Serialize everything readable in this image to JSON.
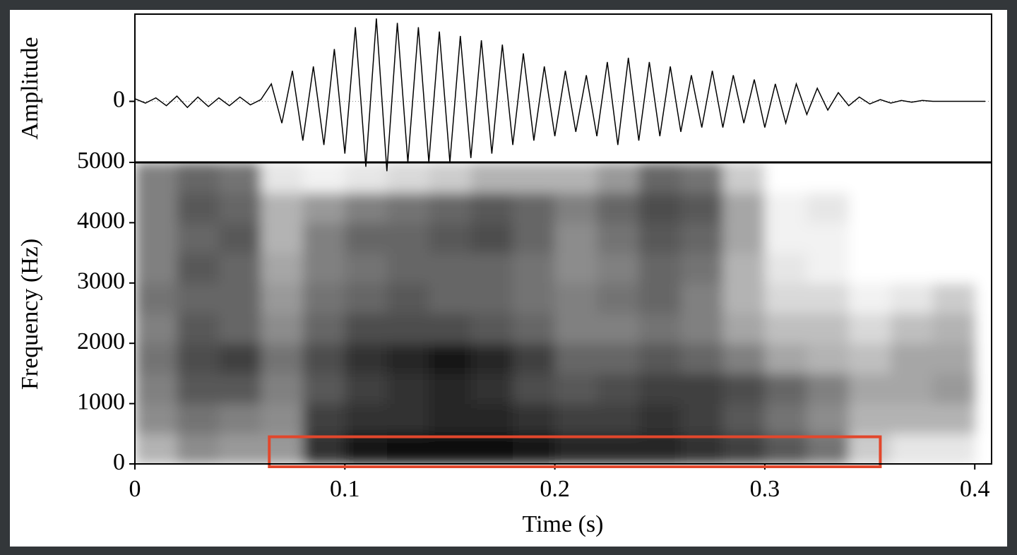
{
  "chart_data": [
    {
      "type": "line",
      "ylabel": "Amplitude",
      "xlim": [
        0,
        0.408
      ],
      "ylim": [
        -0.7,
        1.0
      ],
      "yticks": [
        0
      ],
      "grid": true,
      "color": "#000000",
      "x": [
        0,
        0.005,
        0.01,
        0.015,
        0.02,
        0.025,
        0.03,
        0.035,
        0.04,
        0.045,
        0.05,
        0.055,
        0.06,
        0.065,
        0.07,
        0.075,
        0.08,
        0.085,
        0.09,
        0.095,
        0.1,
        0.105,
        0.11,
        0.115,
        0.12,
        0.125,
        0.13,
        0.135,
        0.14,
        0.145,
        0.15,
        0.155,
        0.16,
        0.165,
        0.17,
        0.175,
        0.18,
        0.185,
        0.19,
        0.195,
        0.2,
        0.205,
        0.21,
        0.215,
        0.22,
        0.225,
        0.23,
        0.235,
        0.24,
        0.245,
        0.25,
        0.255,
        0.26,
        0.265,
        0.27,
        0.275,
        0.28,
        0.285,
        0.29,
        0.295,
        0.3,
        0.305,
        0.31,
        0.315,
        0.32,
        0.325,
        0.33,
        0.335,
        0.34,
        0.345,
        0.35,
        0.355,
        0.36,
        0.365,
        0.37,
        0.375,
        0.38,
        0.385,
        0.39,
        0.395,
        0.4,
        0.405
      ],
      "values": [
        0.03,
        -0.02,
        0.04,
        -0.05,
        0.06,
        -0.07,
        0.05,
        -0.06,
        0.04,
        -0.05,
        0.05,
        -0.04,
        0.02,
        0.2,
        -0.25,
        0.35,
        -0.45,
        0.4,
        -0.5,
        0.6,
        -0.6,
        0.85,
        -0.75,
        0.95,
        -0.8,
        0.9,
        -0.7,
        0.85,
        -0.7,
        0.8,
        -0.7,
        0.75,
        -0.65,
        0.7,
        -0.6,
        0.65,
        -0.5,
        0.55,
        -0.45,
        0.4,
        -0.4,
        0.35,
        -0.35,
        0.3,
        -0.4,
        0.45,
        -0.5,
        0.5,
        -0.45,
        0.45,
        -0.4,
        0.4,
        -0.35,
        0.3,
        -0.3,
        0.35,
        -0.3,
        0.3,
        -0.25,
        0.25,
        -0.3,
        0.2,
        -0.25,
        0.2,
        -0.15,
        0.15,
        -0.1,
        0.1,
        -0.05,
        0.05,
        -0.03,
        0.02,
        -0.02,
        0.01,
        -0.01,
        0.01,
        0,
        0,
        0,
        0,
        0,
        0
      ]
    },
    {
      "type": "heatmap",
      "xlabel": "Time (s)",
      "ylabel": "Frequency (Hz)",
      "xlim": [
        0,
        0.408
      ],
      "ylim": [
        0,
        5000
      ],
      "xticks": [
        0,
        0.1,
        0.2,
        0.3,
        0.4
      ],
      "yticks": [
        0,
        1000,
        2000,
        3000,
        4000,
        5000
      ],
      "x_edges": [
        0,
        0.02,
        0.04,
        0.06,
        0.08,
        0.1,
        0.12,
        0.14,
        0.16,
        0.18,
        0.2,
        0.22,
        0.24,
        0.26,
        0.28,
        0.3,
        0.32,
        0.34,
        0.36,
        0.38,
        0.4
      ],
      "freq_edges": [
        0,
        500,
        1000,
        1500,
        2000,
        2500,
        3000,
        3500,
        4000,
        4500,
        5000
      ],
      "intensity": [
        [
          0.3,
          0.45,
          0.5,
          0.55,
          0.5,
          0.55,
          0.5,
          0.5,
          0.5,
          0.5
        ],
        [
          0.45,
          0.55,
          0.65,
          0.7,
          0.65,
          0.6,
          0.65,
          0.6,
          0.65,
          0.6
        ],
        [
          0.4,
          0.5,
          0.65,
          0.75,
          0.6,
          0.6,
          0.6,
          0.65,
          0.6,
          0.55
        ],
        [
          0.4,
          0.45,
          0.5,
          0.55,
          0.45,
          0.4,
          0.35,
          0.3,
          0.3,
          0.1
        ],
        [
          0.8,
          0.75,
          0.65,
          0.7,
          0.6,
          0.55,
          0.5,
          0.5,
          0.4,
          0.05
        ],
        [
          0.9,
          0.8,
          0.75,
          0.8,
          0.7,
          0.6,
          0.55,
          0.6,
          0.5,
          0.1
        ],
        [
          0.95,
          0.8,
          0.8,
          0.85,
          0.7,
          0.65,
          0.6,
          0.6,
          0.55,
          0.15
        ],
        [
          0.95,
          0.85,
          0.85,
          0.9,
          0.7,
          0.6,
          0.6,
          0.65,
          0.6,
          0.2
        ],
        [
          0.95,
          0.85,
          0.8,
          0.85,
          0.65,
          0.6,
          0.6,
          0.7,
          0.65,
          0.3
        ],
        [
          0.9,
          0.8,
          0.7,
          0.75,
          0.6,
          0.55,
          0.55,
          0.6,
          0.6,
          0.3
        ],
        [
          0.85,
          0.75,
          0.65,
          0.6,
          0.5,
          0.5,
          0.45,
          0.45,
          0.5,
          0.3
        ],
        [
          0.85,
          0.75,
          0.7,
          0.6,
          0.5,
          0.55,
          0.5,
          0.55,
          0.6,
          0.4
        ],
        [
          0.85,
          0.8,
          0.75,
          0.65,
          0.55,
          0.6,
          0.6,
          0.65,
          0.7,
          0.6
        ],
        [
          0.8,
          0.75,
          0.75,
          0.6,
          0.5,
          0.5,
          0.55,
          0.6,
          0.65,
          0.55
        ],
        [
          0.75,
          0.65,
          0.7,
          0.5,
          0.35,
          0.3,
          0.3,
          0.35,
          0.35,
          0.2
        ],
        [
          0.65,
          0.55,
          0.6,
          0.35,
          0.25,
          0.15,
          0.1,
          0.05,
          0.05,
          0
        ],
        [
          0.55,
          0.45,
          0.5,
          0.3,
          0.25,
          0.15,
          0.05,
          0.05,
          0.1,
          0
        ],
        [
          0.2,
          0.3,
          0.35,
          0.25,
          0.15,
          0.05,
          0,
          0,
          0,
          0
        ],
        [
          0.1,
          0.3,
          0.35,
          0.35,
          0.25,
          0.1,
          0,
          0,
          0,
          0
        ],
        [
          0.1,
          0.3,
          0.4,
          0.35,
          0.3,
          0.2,
          0,
          0,
          0,
          0
        ]
      ],
      "highlight": {
        "xlim": [
          0.064,
          0.355
        ],
        "ylim": [
          0,
          450
        ],
        "color": "#e2472c"
      }
    }
  ]
}
